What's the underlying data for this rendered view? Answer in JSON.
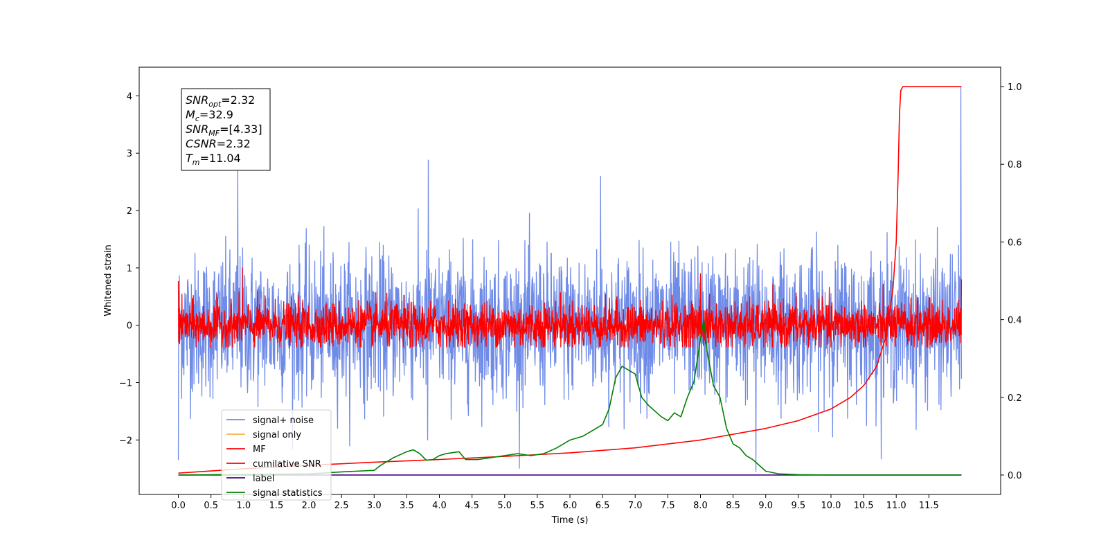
{
  "chart_data": {
    "type": "line",
    "xlabel": "Time (s)",
    "ylabel": "Whitened strain",
    "xlim": [
      -0.6,
      12.6
    ],
    "ylim_left": [
      -2.95,
      4.5
    ],
    "ylim_right": [
      -0.05,
      1.05
    ],
    "x_ticks": [
      0.0,
      0.5,
      1.0,
      1.5,
      2.0,
      2.5,
      3.0,
      3.5,
      4.0,
      4.5,
      5.0,
      5.5,
      6.0,
      6.5,
      7.0,
      7.5,
      8.0,
      8.5,
      9.0,
      9.5,
      10.0,
      10.5,
      11.0,
      11.5
    ],
    "x_tick_labels": [
      "0.0",
      "0.5",
      "1.0",
      "1.5",
      "2.0",
      "2.5",
      "3.0",
      "3.5",
      "4.0",
      "4.5",
      "5.0",
      "5.5",
      "6.0",
      "6.5",
      "7.0",
      "7.5",
      "8.0",
      "8.5",
      "9.0",
      "9.5",
      "10.0",
      "10.5",
      "11.0",
      "11.5"
    ],
    "y_left_ticks": [
      -2,
      -1,
      0,
      1,
      2,
      3,
      4
    ],
    "y_left_tick_labels": [
      "−2",
      "−1",
      "0",
      "1",
      "2",
      "3",
      "4"
    ],
    "y_right_ticks": [
      0.0,
      0.2,
      0.4,
      0.6,
      0.8,
      1.0
    ],
    "y_right_tick_labels": [
      "0.0",
      "0.2",
      "0.4",
      "0.6",
      "0.8",
      "1.0"
    ],
    "grid": false,
    "legend_placement": "lower-left",
    "series": [
      {
        "name": "signal+ noise",
        "color": "#6f8be8",
        "axis": "left",
        "kind": "noise",
        "x_range": [
          0.0,
          12.0
        ],
        "amplitude_std": 0.62,
        "spikes": [
          [
            0.0,
            -2.35
          ],
          [
            0.91,
            2.75
          ],
          [
            3.83,
            2.88
          ],
          [
            3.82,
            -2.0
          ],
          [
            6.47,
            2.6
          ],
          [
            8.85,
            -2.55
          ],
          [
            11.99,
            4.15
          ]
        ]
      },
      {
        "name": "signal only",
        "color": "#f5b041",
        "axis": "left",
        "x": [
          0.0,
          12.0
        ],
        "y": [
          0.0,
          0.0
        ]
      },
      {
        "name": "MF",
        "color": "#ff0000",
        "axis": "left",
        "kind": "noise",
        "x_range": [
          0.0,
          12.0
        ],
        "floor": -0.38,
        "amplitude_std": 0.2,
        "spikes": [
          [
            0.0,
            0.77
          ],
          [
            0.98,
            1.0
          ],
          [
            12.0,
            0.8
          ],
          [
            8.0,
            0.9
          ]
        ]
      },
      {
        "name": "cumilative SNR",
        "color": "#ff0000",
        "axis": "right",
        "x": [
          0.0,
          1.0,
          2.0,
          3.0,
          4.0,
          5.0,
          6.0,
          7.0,
          8.0,
          9.0,
          9.5,
          10.0,
          10.3,
          10.5,
          10.7,
          10.85,
          10.95,
          11.0,
          11.03,
          11.05,
          11.07,
          11.1,
          11.5,
          12.0
        ],
        "y": [
          0.005,
          0.016,
          0.025,
          0.033,
          0.04,
          0.048,
          0.057,
          0.07,
          0.09,
          0.12,
          0.14,
          0.17,
          0.2,
          0.23,
          0.28,
          0.36,
          0.48,
          0.6,
          0.78,
          0.93,
          0.99,
          1.0,
          1.0,
          1.0
        ]
      },
      {
        "name": "label",
        "color": "#4b0082",
        "axis": "right",
        "x": [
          0.0,
          12.0
        ],
        "y": [
          0.0,
          0.0
        ]
      },
      {
        "name": "signal statistics",
        "color": "#008000",
        "axis": "right",
        "x": [
          0.0,
          2.0,
          2.5,
          3.0,
          3.1,
          3.3,
          3.5,
          3.6,
          3.7,
          3.8,
          3.9,
          4.0,
          4.1,
          4.3,
          4.4,
          4.6,
          4.8,
          5.0,
          5.2,
          5.4,
          5.6,
          5.8,
          6.0,
          6.2,
          6.4,
          6.5,
          6.6,
          6.7,
          6.8,
          6.9,
          7.0,
          7.1,
          7.2,
          7.4,
          7.5,
          7.6,
          7.7,
          7.8,
          7.9,
          8.0,
          8.05,
          8.1,
          8.2,
          8.3,
          8.4,
          8.5,
          8.6,
          8.7,
          8.8,
          9.0,
          9.2,
          9.5,
          10.0,
          11.0,
          12.0
        ],
        "y": [
          0.0,
          0.003,
          0.008,
          0.012,
          0.025,
          0.045,
          0.06,
          0.065,
          0.055,
          0.038,
          0.04,
          0.05,
          0.055,
          0.06,
          0.04,
          0.04,
          0.045,
          0.05,
          0.055,
          0.05,
          0.055,
          0.07,
          0.09,
          0.1,
          0.12,
          0.13,
          0.17,
          0.25,
          0.28,
          0.27,
          0.26,
          0.2,
          0.18,
          0.15,
          0.14,
          0.16,
          0.15,
          0.2,
          0.24,
          0.35,
          0.4,
          0.32,
          0.23,
          0.2,
          0.12,
          0.08,
          0.07,
          0.05,
          0.04,
          0.01,
          0.003,
          0.001,
          0.0,
          0.0,
          0.0
        ]
      }
    ],
    "info_box": {
      "lines": [
        {
          "main": "SNR",
          "sub": "opt",
          "value": "=2.32"
        },
        {
          "main": "M",
          "sub": "c",
          "value": "=32.9"
        },
        {
          "main": "SNR",
          "sub": "MF",
          "value": "=[4.33]"
        },
        {
          "main": "CSNR",
          "sub": "",
          "value": "=2.32"
        },
        {
          "main": "T",
          "sub": "m",
          "value": "=11.04"
        }
      ]
    }
  }
}
